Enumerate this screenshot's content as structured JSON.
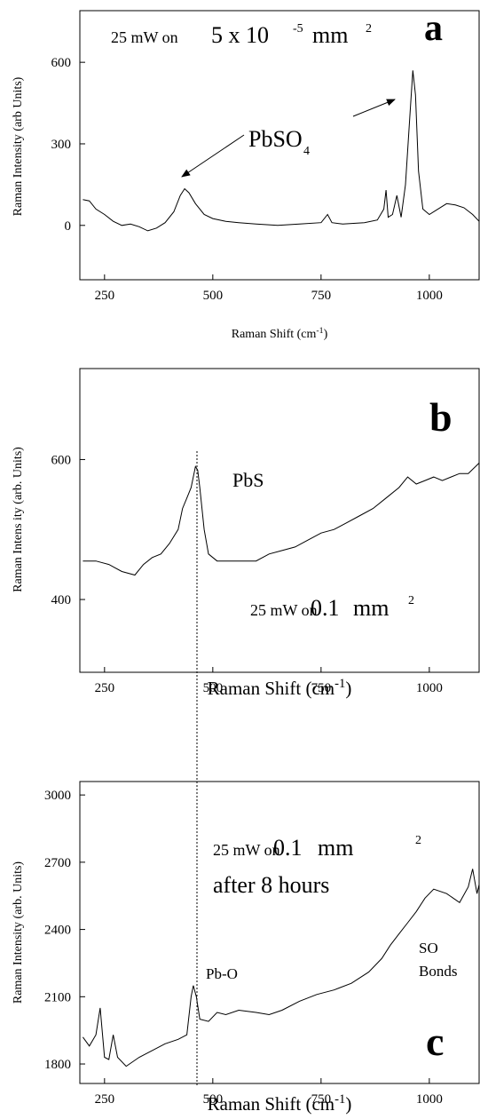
{
  "chart_data": [
    {
      "type": "line",
      "panel": "a",
      "ylabel": "Raman Intensity (arb Units)",
      "xlabel": [
        "Raman Shift   (cm",
        "-1",
        ")"
      ],
      "annotations": [
        "25 mW on",
        "5 x 10",
        "-5",
        "mm",
        "2",
        "PbSO",
        "4",
        "a"
      ],
      "x": [
        200,
        215,
        230,
        250,
        270,
        290,
        310,
        330,
        350,
        370,
        390,
        410,
        425,
        435,
        445,
        460,
        480,
        500,
        530,
        560,
        600,
        650,
        700,
        750,
        765,
        775,
        800,
        850,
        880,
        895,
        900,
        905,
        915,
        925,
        935,
        945,
        955,
        962,
        968,
        975,
        985,
        1000,
        1020,
        1040,
        1060,
        1080,
        1100,
        1115
      ],
      "values": [
        95,
        90,
        60,
        40,
        15,
        0,
        5,
        -5,
        -20,
        -10,
        10,
        50,
        110,
        135,
        120,
        80,
        40,
        25,
        15,
        10,
        5,
        0,
        5,
        10,
        40,
        10,
        5,
        10,
        20,
        60,
        130,
        30,
        40,
        110,
        30,
        150,
        400,
        570,
        480,
        200,
        60,
        40,
        60,
        80,
        75,
        65,
        40,
        15
      ],
      "color": "#000000",
      "xlim": [
        193,
        1115
      ],
      "xticks": [
        250,
        500,
        750,
        1000
      ],
      "ylim": [
        -200,
        790
      ],
      "yticks": [
        0,
        300,
        600
      ]
    },
    {
      "type": "line",
      "panel": "b",
      "ylabel": "Raman  Intens ity (arb. Units)",
      "xlabel": [
        "Raman  Shift (cm",
        "-1",
        ")"
      ],
      "annotations": [
        "PbS",
        "25 mW on",
        "0.1",
        "mm",
        "2",
        "b"
      ],
      "x": [
        200,
        230,
        260,
        290,
        320,
        340,
        360,
        380,
        400,
        420,
        430,
        440,
        450,
        460,
        465,
        470,
        480,
        490,
        510,
        540,
        570,
        600,
        630,
        660,
        690,
        720,
        750,
        780,
        810,
        840,
        870,
        900,
        930,
        950,
        970,
        990,
        1010,
        1030,
        1050,
        1070,
        1090,
        1115
      ],
      "values": [
        455,
        455,
        450,
        440,
        435,
        450,
        460,
        465,
        480,
        500,
        530,
        545,
        560,
        590,
        585,
        560,
        500,
        465,
        455,
        455,
        455,
        455,
        465,
        470,
        475,
        485,
        495,
        500,
        510,
        520,
        530,
        545,
        560,
        575,
        565,
        570,
        575,
        570,
        575,
        580,
        580,
        595
      ],
      "color": "#000000",
      "xlim": [
        193,
        1115
      ],
      "xticks": [
        250,
        500,
        750,
        1000
      ],
      "ylim": [
        296,
        730
      ],
      "yticks": [
        400,
        600
      ]
    },
    {
      "type": "line",
      "panel": "c",
      "ylabel": "Raman  Intensity (arb. Units)",
      "xlabel": [
        "Raman  Shift (cm",
        "-1",
        ")"
      ],
      "annotations": [
        "25 mW on",
        "0.1",
        "mm",
        "2",
        "after 8 hours",
        "Pb-O",
        "SO",
        "Bonds",
        "c"
      ],
      "x": [
        200,
        215,
        230,
        240,
        250,
        260,
        270,
        280,
        300,
        330,
        360,
        390,
        420,
        440,
        450,
        455,
        462,
        470,
        490,
        510,
        530,
        560,
        600,
        630,
        660,
        700,
        740,
        780,
        820,
        860,
        890,
        910,
        930,
        950,
        970,
        990,
        1010,
        1040,
        1070,
        1090,
        1100,
        1110,
        1115
      ],
      "values": [
        1920,
        1880,
        1930,
        2050,
        1830,
        1820,
        1930,
        1830,
        1790,
        1830,
        1860,
        1890,
        1910,
        1930,
        2100,
        2150,
        2100,
        2000,
        1990,
        2030,
        2020,
        2040,
        2030,
        2020,
        2040,
        2080,
        2110,
        2130,
        2160,
        2210,
        2270,
        2330,
        2380,
        2430,
        2480,
        2540,
        2580,
        2560,
        2520,
        2590,
        2670,
        2560,
        2600
      ],
      "color": "#000000",
      "xlim": [
        193,
        1115
      ],
      "xticks": [
        250,
        500,
        750,
        1000
      ],
      "ylim": [
        1713,
        3060
      ],
      "yticks": [
        1800,
        2100,
        2400,
        2700,
        3000
      ]
    }
  ]
}
